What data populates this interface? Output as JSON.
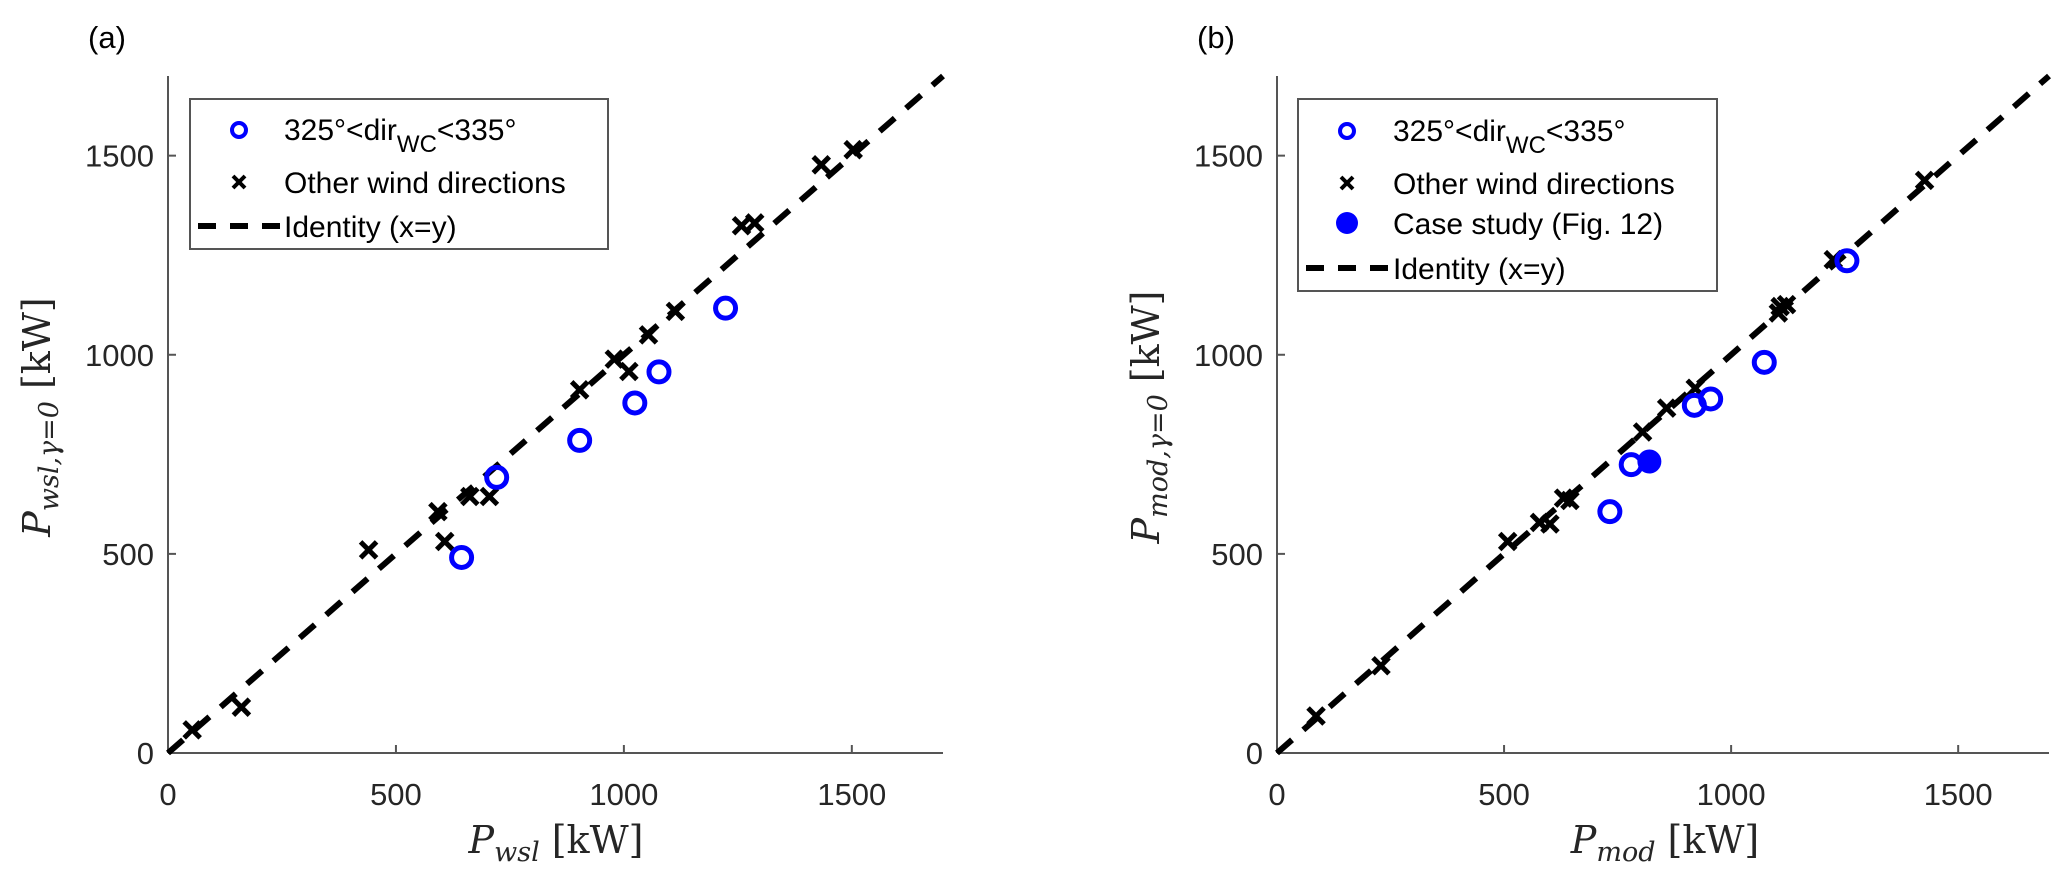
{
  "colors": {
    "highlight": "#0000ff",
    "other": "#000000",
    "axis": "#555555"
  },
  "chart_data": [
    {
      "type": "scatter",
      "panel_label": "(a)",
      "xlabel": {
        "main": "P",
        "sub": "wsl",
        "unit": "[kW]"
      },
      "ylabel": {
        "main": "P",
        "sub": "wsl,γ=0",
        "unit": "[kW]"
      },
      "xlim": [
        0,
        1700
      ],
      "ylim": [
        0,
        1700
      ],
      "xticks": [
        "0",
        "500",
        "1000",
        "1500"
      ],
      "yticks": [
        "0",
        "500",
        "1000",
        "1500"
      ],
      "grid": false,
      "legend_position": "top-left",
      "legend": [
        {
          "label_pre": "325°<dir",
          "label_sub": "WC",
          "label_post": "<335°",
          "marker": "open-circle"
        },
        {
          "label": "Other wind directions",
          "marker": "x"
        },
        {
          "label": "Identity (x=y)",
          "marker": "dashed-line"
        }
      ],
      "series": [
        {
          "name": "325°<dirWC<335°",
          "marker": "open-circle",
          "points": [
            [
              644,
              491
            ],
            [
              721,
              692
            ],
            [
              903,
              785
            ],
            [
              1024,
              879
            ],
            [
              1077,
              957
            ],
            [
              1223,
              1117
            ]
          ]
        },
        {
          "name": "Other wind directions",
          "marker": "x",
          "points": [
            [
              53,
              58
            ],
            [
              161,
              115
            ],
            [
              440,
              510
            ],
            [
              592,
              606
            ],
            [
              607,
              531
            ],
            [
              662,
              644
            ],
            [
              705,
              644
            ],
            [
              903,
              912
            ],
            [
              979,
              989
            ],
            [
              1011,
              958
            ],
            [
              1054,
              1050
            ],
            [
              1113,
              1109
            ],
            [
              1258,
              1324
            ],
            [
              1287,
              1331
            ],
            [
              1433,
              1477
            ],
            [
              1503,
              1515
            ]
          ]
        },
        {
          "name": "Identity (x=y)",
          "marker": "dashed-line",
          "points": [
            [
              0,
              0
            ],
            [
              1700,
              1700
            ]
          ]
        }
      ]
    },
    {
      "type": "scatter",
      "panel_label": "(b)",
      "xlabel": {
        "main": "P",
        "sub": "mod",
        "unit": "[kW]"
      },
      "ylabel": {
        "main": "P",
        "sub": "mod,γ=0",
        "unit": "[kW]"
      },
      "xlim": [
        0,
        1700
      ],
      "ylim": [
        0,
        1700
      ],
      "xticks": [
        "0",
        "500",
        "1000",
        "1500"
      ],
      "yticks": [
        "0",
        "500",
        "1000",
        "1500"
      ],
      "grid": false,
      "legend_position": "top-left",
      "legend": [
        {
          "label_pre": "325°<dir",
          "label_sub": "WC",
          "label_post": "<335°",
          "marker": "open-circle"
        },
        {
          "label": "Other wind directions",
          "marker": "x"
        },
        {
          "label": "Case study (Fig. 12)",
          "marker": "filled-circle"
        },
        {
          "label": "Identity (x=y)",
          "marker": "dashed-line"
        }
      ],
      "series": [
        {
          "name": "325°<dirWC<335°",
          "marker": "open-circle",
          "points": [
            [
              733,
              606
            ],
            [
              780,
              724
            ],
            [
              919,
              873
            ],
            [
              955,
              889
            ],
            [
              1073,
              981
            ],
            [
              1255,
              1236
            ]
          ]
        },
        {
          "name": "Other wind directions",
          "marker": "x",
          "points": [
            [
              86,
              93
            ],
            [
              229,
              219
            ],
            [
              508,
              531
            ],
            [
              578,
              579
            ],
            [
              601,
              575
            ],
            [
              631,
              640
            ],
            [
              645,
              634
            ],
            [
              805,
              806
            ],
            [
              858,
              866
            ],
            [
              921,
              916
            ],
            [
              1104,
              1105
            ],
            [
              1108,
              1121
            ],
            [
              1122,
              1126
            ],
            [
              1225,
              1239
            ],
            [
              1426,
              1438
            ]
          ]
        },
        {
          "name": "Case study (Fig. 12)",
          "marker": "filled-circle",
          "points": [
            [
              820,
              732
            ]
          ]
        },
        {
          "name": "Identity (x=y)",
          "marker": "dashed-line",
          "points": [
            [
              0,
              0
            ],
            [
              1700,
              1700
            ]
          ]
        }
      ]
    }
  ]
}
